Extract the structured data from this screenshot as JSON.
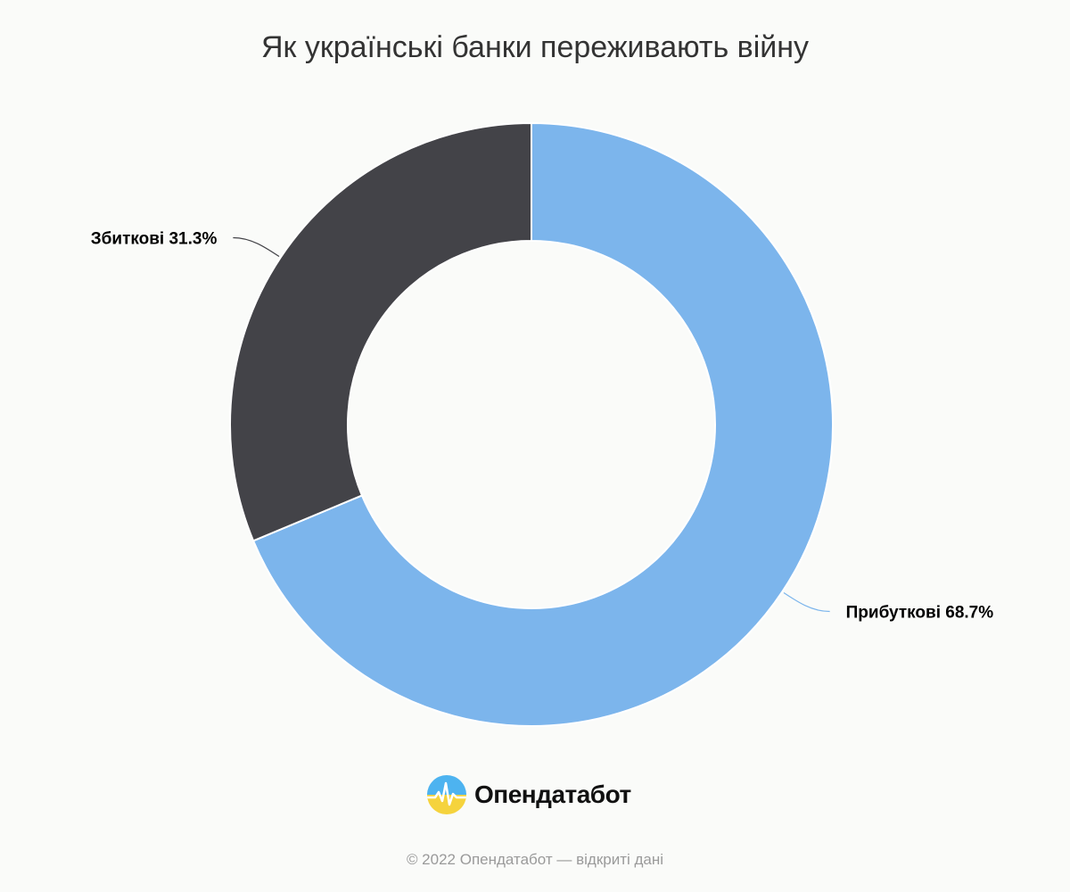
{
  "chart_data": {
    "type": "pie",
    "title": "Як українські банки переживають війну",
    "slices": [
      {
        "name": "Прибуткові",
        "value": 68.7,
        "label": "Прибуткові 68.7%",
        "color": "#7cb5ec"
      },
      {
        "name": "Збиткові",
        "value": 31.3,
        "label": "Збиткові 31.3%",
        "color": "#434348"
      }
    ],
    "start_angle": "top",
    "direction": "clockwise",
    "donut": true
  },
  "logo": {
    "text": "Опендатабот",
    "colors": {
      "top": "#4db3f0",
      "bottom": "#f5d33d"
    }
  },
  "footer": {
    "copyright": "© 2022 Опендатабот — відкриті дані"
  }
}
